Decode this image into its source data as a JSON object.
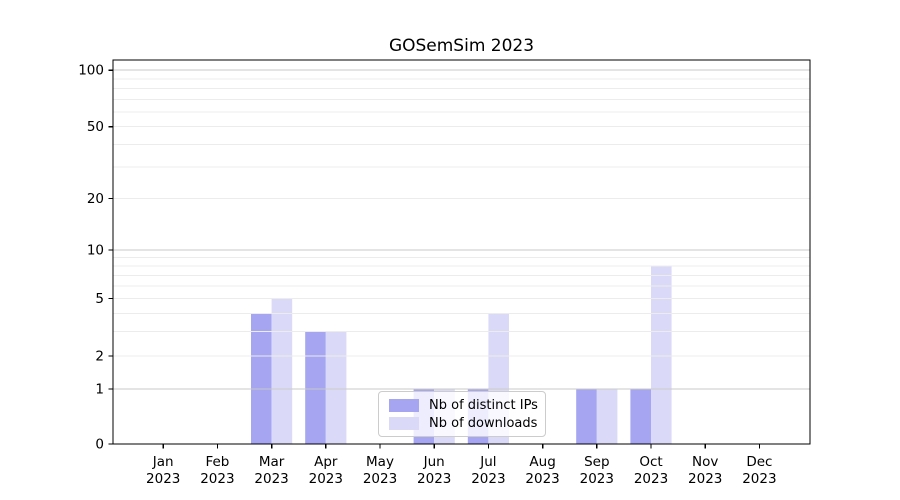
{
  "chart_data": {
    "type": "bar",
    "title": "GOSemSim 2023",
    "categories": [
      "Jan",
      "Feb",
      "Mar",
      "Apr",
      "May",
      "Jun",
      "Jul",
      "Aug",
      "Sep",
      "Oct",
      "Nov",
      "Dec"
    ],
    "year_label": "2023",
    "series": [
      {
        "name": "Nb of distinct IPs",
        "color": "#a5a5f2",
        "values": [
          0,
          0,
          4,
          3,
          0,
          1,
          1,
          0,
          1,
          1,
          0,
          0
        ]
      },
      {
        "name": "Nb of downloads",
        "color": "#dadaf8",
        "values": [
          0,
          0,
          5,
          3,
          0,
          1,
          4,
          0,
          1,
          8,
          0,
          0
        ]
      }
    ],
    "yticks": [
      100,
      50,
      20,
      10,
      5,
      2,
      1,
      0
    ],
    "ylim": [
      0,
      110
    ],
    "yscale": "log-like (log above 1, linear segment 0-1)",
    "grid_major": [
      1,
      10,
      100
    ],
    "grid_minor": [
      2,
      3,
      4,
      5,
      6,
      7,
      8,
      9,
      20,
      30,
      40,
      50,
      60,
      70,
      80,
      90
    ],
    "grid_on": true,
    "legend_position": "lower-center",
    "xlabel": "",
    "ylabel": "",
    "colors": {
      "major_grid": "#c9c9c9",
      "minor_grid": "#ececec",
      "axis": "#000000",
      "text": "#000000",
      "background": "#ffffff"
    }
  }
}
